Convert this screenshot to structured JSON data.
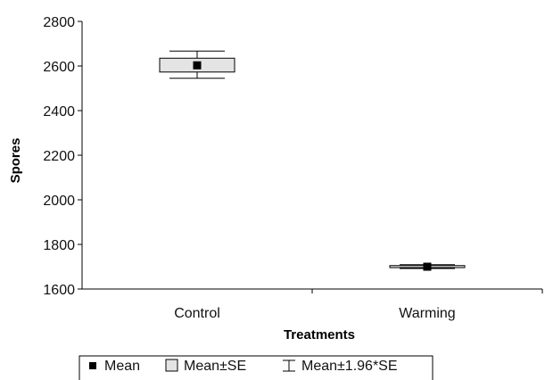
{
  "chart_data": {
    "type": "box",
    "xlabel": "Treatments",
    "ylabel": "Spores",
    "ylim": [
      1600,
      2800
    ],
    "yticks": [
      1600,
      1800,
      2000,
      2200,
      2400,
      2600,
      2800
    ],
    "categories": [
      "Control",
      "Warming"
    ],
    "series": [
      {
        "category": "Control",
        "mean": 2603,
        "se_low": 2573,
        "se_high": 2635,
        "ci_low": 2545,
        "ci_high": 2667
      },
      {
        "category": "Warming",
        "mean": 1700,
        "se_low": 1696,
        "se_high": 1705,
        "ci_low": 1692,
        "ci_high": 1709
      }
    ],
    "legend": {
      "position": "bottom",
      "items": [
        {
          "symbol": "mean-marker",
          "label": "Mean"
        },
        {
          "symbol": "se-box",
          "label": "Mean±SE"
        },
        {
          "symbol": "ci-whisker",
          "label": "Mean±1.96*SE"
        }
      ]
    },
    "colors": {
      "box_fill": "#e4e4e4",
      "mean_marker": "#000000",
      "line": "#000000"
    }
  }
}
